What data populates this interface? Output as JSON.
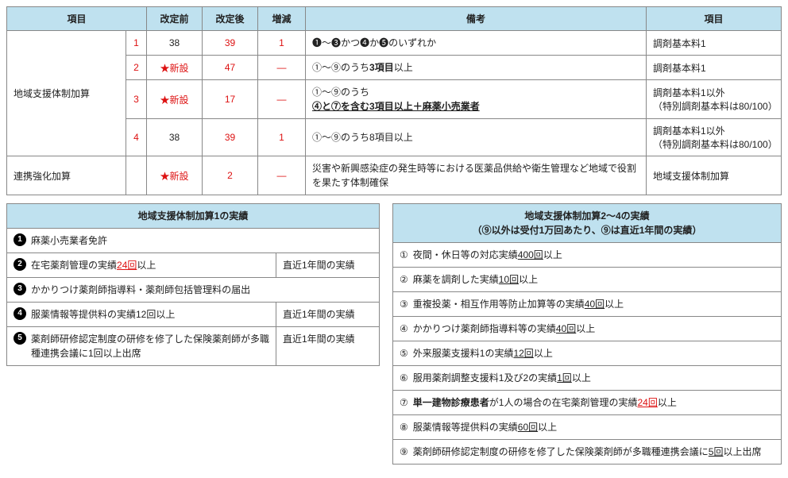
{
  "main_table": {
    "headers": [
      "項目",
      "改定前",
      "改定後",
      "増減",
      "備考",
      "項目"
    ],
    "col_widths": [
      "150px",
      "26px",
      "70px",
      "70px",
      "60px",
      "auto",
      "170px"
    ],
    "rows": [
      {
        "label": "地域支援体制加算",
        "n": "1",
        "pre": "38",
        "post": "39",
        "diff": "1",
        "remark_segments": [
          {
            "t": "❶"
          },
          {
            "t": "～"
          },
          {
            "t": "❸"
          },
          {
            "t": "かつ"
          },
          {
            "t": "❹"
          },
          {
            "t": "か"
          },
          {
            "t": "❺"
          },
          {
            "t": "のいずれか"
          }
        ],
        "item": "調剤基本料1",
        "rowspan": 4
      },
      {
        "n": "2",
        "pre": "★新設",
        "pre_red": true,
        "post": "47",
        "diff": "―",
        "remark_segments": [
          {
            "t": "①～⑨のうち"
          },
          {
            "t": "3項目",
            "b": true
          },
          {
            "t": "以上"
          }
        ],
        "item": "調剤基本料1"
      },
      {
        "n": "3",
        "pre": "★新設",
        "pre_red": true,
        "post": "17",
        "diff": "―",
        "remark_lines": [
          [
            {
              "t": "①～⑨のうち"
            }
          ],
          [
            {
              "t": "④と⑦を含む3項目以上＋麻薬小売業者",
              "b": true,
              "u": true
            }
          ]
        ],
        "item": "調剤基本料1以外\n（特別調剤基本料は80/100）"
      },
      {
        "n": "4",
        "pre": "38",
        "post": "39",
        "diff": "1",
        "remark_segments": [
          {
            "t": "①～⑨のうち8項目以上"
          }
        ],
        "item": "調剤基本料1以外\n（特別調剤基本料は80/100）"
      },
      {
        "label": "連携強化加算",
        "n": "",
        "pre": "★新設",
        "pre_red": true,
        "post": "2",
        "diff": "―",
        "remark_segments": [
          {
            "t": "災害や新興感染症の発生時等における医薬品供給や衛生管理など地域で役割を果たす体制確保"
          }
        ],
        "item": "地域支援体制加算"
      }
    ]
  },
  "left_panel": {
    "title": "地域支援体制加算1の実績",
    "rows": [
      {
        "num": "1",
        "segments": [
          {
            "t": "麻薬小売業者免許"
          }
        ]
      },
      {
        "num": "2",
        "segments": [
          {
            "t": "在宅薬剤管理の実績"
          },
          {
            "t": "24回",
            "r": true,
            "u": true
          },
          {
            "t": "以上"
          }
        ],
        "side": "直近1年間の実績"
      },
      {
        "num": "3",
        "segments": [
          {
            "t": "かかりつけ薬剤師指導料・薬剤師包括管理料の届出"
          }
        ]
      },
      {
        "num": "4",
        "segments": [
          {
            "t": "服薬情報等提供料の実績12回以上"
          }
        ],
        "side": "直近1年間の実績"
      },
      {
        "num": "5",
        "segments": [
          {
            "t": "薬剤師研修認定制度の研修を修了した保険薬剤師が多職種連携会議に1回以上出席"
          }
        ],
        "side": "直近1年間の実績"
      }
    ]
  },
  "right_panel": {
    "title": "地域支援体制加算2～4の実績\n（⑨以外は受付1万回あたり、⑨は直近1年間の実績）",
    "rows": [
      {
        "num": "①",
        "segments": [
          {
            "t": "夜間・休日等の対応実績"
          },
          {
            "t": "400回",
            "u": true
          },
          {
            "t": "以上"
          }
        ]
      },
      {
        "num": "②",
        "segments": [
          {
            "t": "麻薬を調剤した実績"
          },
          {
            "t": "10回",
            "u": true
          },
          {
            "t": "以上"
          }
        ]
      },
      {
        "num": "③",
        "segments": [
          {
            "t": "重複投薬・相互作用等防止加算等の実績"
          },
          {
            "t": "40回",
            "u": true
          },
          {
            "t": "以上"
          }
        ]
      },
      {
        "num": "④",
        "segments": [
          {
            "t": "かかりつけ薬剤師指導料等の実績"
          },
          {
            "t": "40回",
            "u": true
          },
          {
            "t": "以上"
          }
        ]
      },
      {
        "num": "⑤",
        "segments": [
          {
            "t": "外来服薬支援料1の実績"
          },
          {
            "t": "12回",
            "u": true
          },
          {
            "t": "以上"
          }
        ]
      },
      {
        "num": "⑥",
        "segments": [
          {
            "t": "服用薬剤調整支援料1及び2の実績"
          },
          {
            "t": "1回",
            "u": true
          },
          {
            "t": "以上"
          }
        ]
      },
      {
        "num": "⑦",
        "segments": [
          {
            "t": "単一建物診療患者",
            "b": true
          },
          {
            "t": "が1人の場合の在宅薬剤管理の実績"
          },
          {
            "t": "24回",
            "r": true,
            "u": true
          },
          {
            "t": "以上"
          }
        ]
      },
      {
        "num": "⑧",
        "segments": [
          {
            "t": "服薬情報等提供料の実績"
          },
          {
            "t": "60回",
            "u": true
          },
          {
            "t": "以上"
          }
        ]
      },
      {
        "num": "⑨",
        "segments": [
          {
            "t": "薬剤師研修認定制度の研修を修了した保険薬剤師が多職種連携会議に"
          },
          {
            "t": "5回",
            "u": true
          },
          {
            "t": "以上出席"
          }
        ]
      }
    ]
  }
}
